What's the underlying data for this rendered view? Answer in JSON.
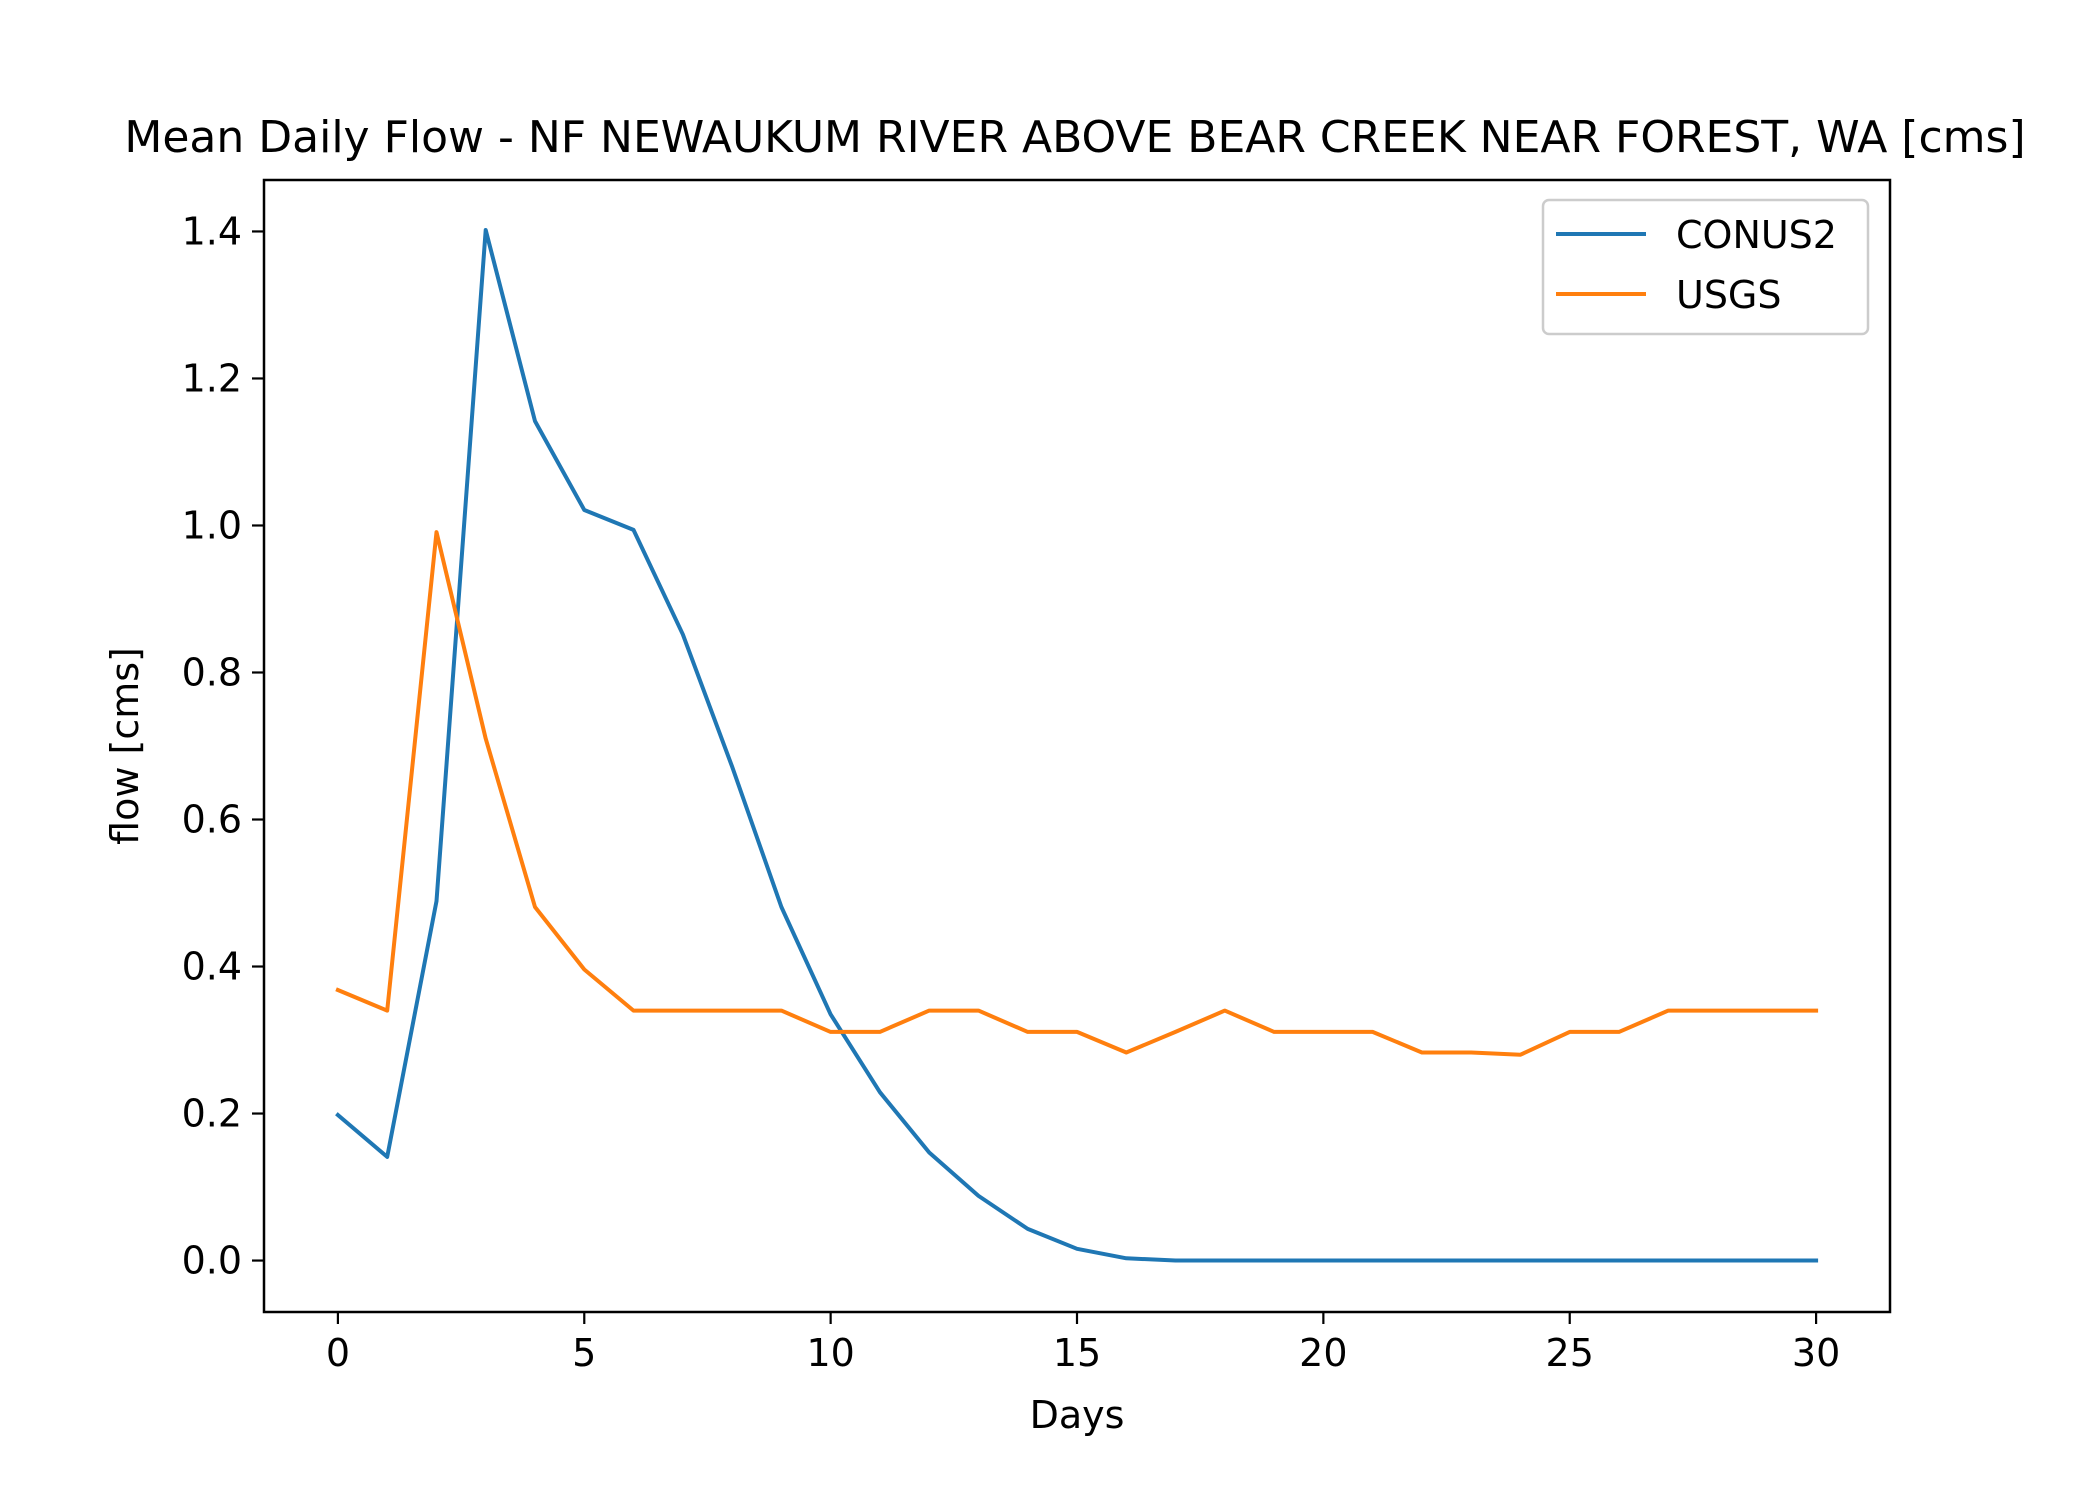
{
  "chart_data": {
    "type": "line",
    "title": "Mean Daily Flow - NF NEWAUKUM RIVER ABOVE BEAR CREEK NEAR FOREST, WA [cms]",
    "xlabel": "Days",
    "ylabel": "flow [cms]",
    "xlim": [
      -1.5,
      31.5
    ],
    "ylim": [
      -0.07,
      1.47
    ],
    "xticks": [
      0,
      5,
      10,
      15,
      20,
      25,
      30
    ],
    "xtick_labels": [
      "0",
      "5",
      "10",
      "15",
      "20",
      "25",
      "30"
    ],
    "yticks": [
      0.0,
      0.2,
      0.4,
      0.6,
      0.8,
      1.0,
      1.2,
      1.4
    ],
    "ytick_labels": [
      "0.0",
      "0.2",
      "0.4",
      "0.6",
      "0.8",
      "1.0",
      "1.2",
      "1.4"
    ],
    "grid": false,
    "legend_position": "top-right",
    "x": [
      0,
      1,
      2,
      3,
      4,
      5,
      6,
      7,
      8,
      9,
      10,
      11,
      12,
      13,
      14,
      15,
      16,
      17,
      18,
      19,
      20,
      21,
      22,
      23,
      24,
      25,
      26,
      27,
      28,
      29,
      30
    ],
    "series": [
      {
        "name": "CONUS2",
        "color": "#1f77b4",
        "values": [
          0.198,
          0.141,
          0.489,
          1.402,
          1.142,
          1.021,
          0.994,
          0.852,
          0.672,
          0.481,
          0.335,
          0.229,
          0.147,
          0.088,
          0.043,
          0.016,
          0.003,
          0.0,
          0.0,
          0.0,
          0.0,
          0.0,
          0.0,
          0.0,
          0.0,
          0.0,
          0.0,
          0.0,
          0.0,
          0.0,
          0.0
        ]
      },
      {
        "name": "USGS",
        "color": "#ff7f0e",
        "values": [
          0.368,
          0.34,
          0.991,
          0.71,
          0.481,
          0.396,
          0.34,
          0.34,
          0.34,
          0.34,
          0.311,
          0.311,
          0.34,
          0.34,
          0.311,
          0.311,
          0.283,
          0.311,
          0.34,
          0.311,
          0.311,
          0.311,
          0.283,
          0.283,
          0.28,
          0.311,
          0.311,
          0.34,
          0.34,
          0.34,
          0.34
        ]
      }
    ]
  }
}
